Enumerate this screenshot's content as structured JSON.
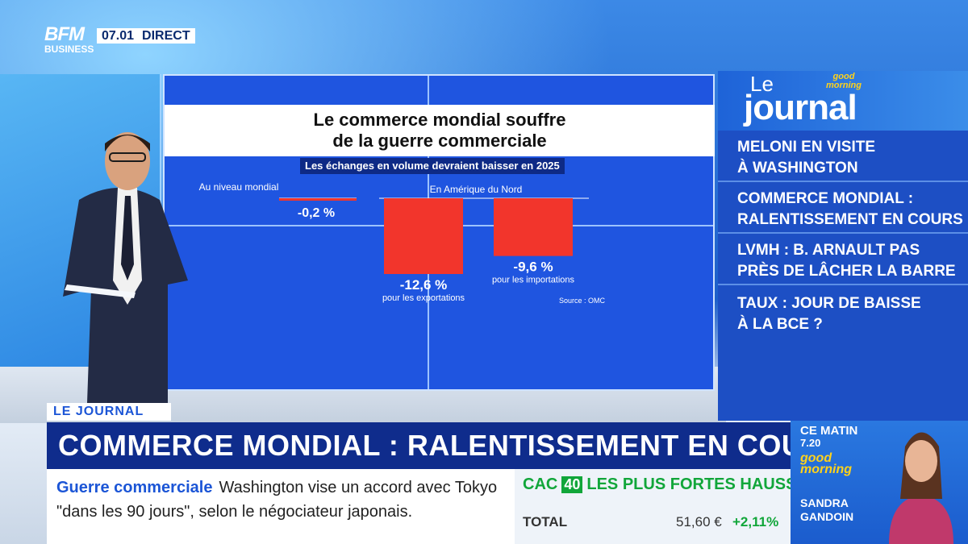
{
  "broadcast": {
    "logo_line1": "BFM",
    "logo_line2": "BUSINESS",
    "time": "07.01",
    "live_label": "DIRECT"
  },
  "chart_data": {
    "type": "bar",
    "title": "Le commerce mondial souffre de la guerre commerciale",
    "title_line1": "Le commerce mondial souffre",
    "title_line2": "de la guerre commerciale",
    "subtitle": "Les échanges en volume devraient baisser en 2025",
    "groups": [
      {
        "label": "Au niveau mondial",
        "bars": [
          {
            "value": -0.2,
            "value_label": "-0,2 %",
            "label": ""
          }
        ]
      },
      {
        "label": "En Amérique du Nord",
        "bars": [
          {
            "value": -12.6,
            "value_label": "-12,6 %",
            "label": "pour les exportations"
          },
          {
            "value": -9.6,
            "value_label": "-9,6 %",
            "label": "pour les importations"
          }
        ]
      }
    ],
    "unit": "%",
    "ylim": [
      -12.6,
      0
    ],
    "source": "Source : OMC",
    "bar_color": "#f2352c"
  },
  "journal": {
    "le": "Le",
    "title": "journal",
    "badge_line1": "good",
    "badge_line2": "morning",
    "items": [
      {
        "line1": "MELONI EN VISITE",
        "line2": "À WASHINGTON"
      },
      {
        "line1": "COMMERCE MONDIAL :",
        "line2": "RALENTISSEMENT EN COURS"
      },
      {
        "line1": "LVMH : B. ARNAULT PAS",
        "line2": "PRÈS DE LÂCHER LA BARRE"
      },
      {
        "line1": "TAUX : JOUR DE BAISSE",
        "line2": "À LA BCE ?"
      }
    ]
  },
  "lower_third": {
    "tag": "LE JOURNAL",
    "headline": "COMMERCE MONDIAL : RALENTISSEMENT EN COURS",
    "ticker_topic": "Guerre commerciale",
    "ticker_text_1": "Washington vise un accord avec Tokyo",
    "ticker_text_2": "\"dans les 90 jours\", selon le négociateur japonais."
  },
  "market": {
    "index": "CAC",
    "index_num": "40",
    "label": "LES PLUS FORTES HAUSSES",
    "row_name": "TOTAL",
    "row_value": "51,60 €",
    "row_change": "+2,11%"
  },
  "show": {
    "ce_matin": "CE MATIN",
    "time": "7.20",
    "logo_line1": "good",
    "logo_line2": "morning",
    "anchor_first": "SANDRA",
    "anchor_last": "GANDOIN"
  },
  "colors": {
    "screen_blue": "#1f55e0",
    "navy": "#0f2c8c",
    "accent_green": "#11a63a",
    "accent_yellow": "#ffd21a"
  }
}
